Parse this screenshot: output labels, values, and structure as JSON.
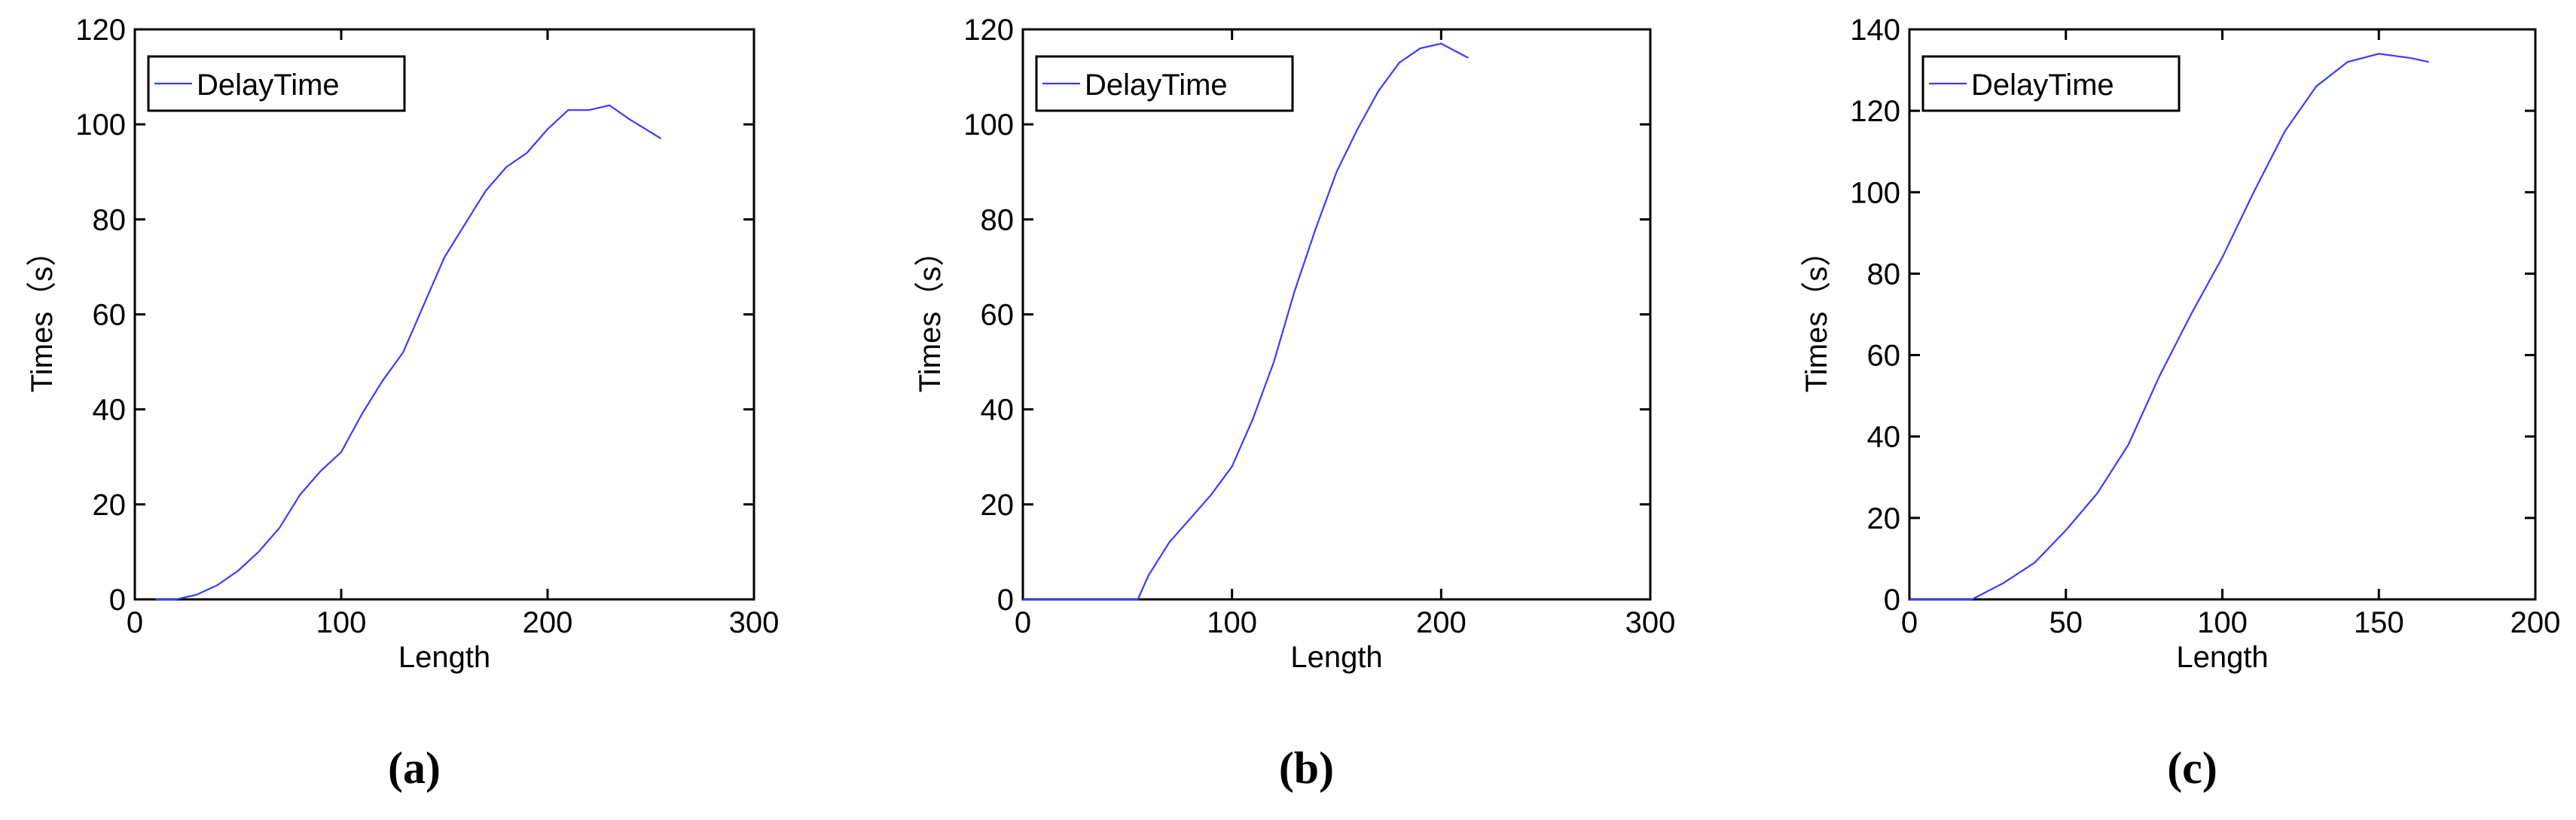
{
  "chart_data": [
    {
      "type": "line",
      "caption": "(a)",
      "xlabel": "Length",
      "ylabel": "Times（s）",
      "xlim": [
        0,
        300
      ],
      "xticks": [
        0,
        100,
        200,
        300
      ],
      "ylim": [
        0,
        120
      ],
      "yticks": [
        0,
        20,
        40,
        60,
        80,
        100,
        120
      ],
      "legend": "upper left",
      "x": [
        10,
        20,
        30,
        40,
        50,
        60,
        70,
        80,
        90,
        100,
        110,
        120,
        130,
        140,
        150,
        160,
        170,
        180,
        190,
        200,
        210,
        220,
        230,
        240,
        255
      ],
      "series": [
        {
          "name": "DelayTime",
          "color": "#3b3bff",
          "values": [
            0,
            0,
            1,
            3,
            6,
            10,
            15,
            22,
            27,
            31,
            39,
            46,
            52,
            62,
            72,
            79,
            86,
            91,
            94,
            99,
            103,
            103,
            104,
            101,
            97
          ]
        }
      ]
    },
    {
      "type": "line",
      "caption": "(b)",
      "xlabel": "Length",
      "ylabel": "Times（s）",
      "xlim": [
        0,
        300
      ],
      "xticks": [
        0,
        100,
        200,
        300
      ],
      "ylim": [
        0,
        120
      ],
      "yticks": [
        0,
        20,
        40,
        60,
        80,
        100,
        120
      ],
      "legend": "upper left",
      "x": [
        0,
        20,
        40,
        55,
        60,
        70,
        80,
        90,
        100,
        110,
        120,
        130,
        140,
        150,
        160,
        170,
        180,
        190,
        200,
        213
      ],
      "series": [
        {
          "name": "DelayTime",
          "color": "#3b3bff",
          "values": [
            0,
            0,
            0,
            0,
            5,
            12,
            17,
            22,
            28,
            38,
            50,
            65,
            78,
            90,
            99,
            107,
            113,
            116,
            117,
            114
          ]
        }
      ]
    },
    {
      "type": "line",
      "caption": "(c)",
      "xlabel": "Length",
      "ylabel": "Times（s）",
      "xlim": [
        0,
        200
      ],
      "xticks": [
        0,
        50,
        100,
        150,
        200
      ],
      "ylim": [
        0,
        140
      ],
      "yticks": [
        0,
        20,
        40,
        60,
        80,
        100,
        120,
        140
      ],
      "legend": "upper left",
      "x": [
        0,
        10,
        20,
        25,
        30,
        40,
        50,
        60,
        70,
        80,
        90,
        100,
        110,
        120,
        130,
        140,
        150,
        160,
        166
      ],
      "series": [
        {
          "name": "DelayTime",
          "color": "#3b3bff",
          "values": [
            0,
            0,
            0,
            2,
            4,
            9,
            17,
            26,
            38,
            55,
            70,
            84,
            100,
            115,
            126,
            132,
            134,
            133,
            132
          ]
        }
      ]
    }
  ]
}
